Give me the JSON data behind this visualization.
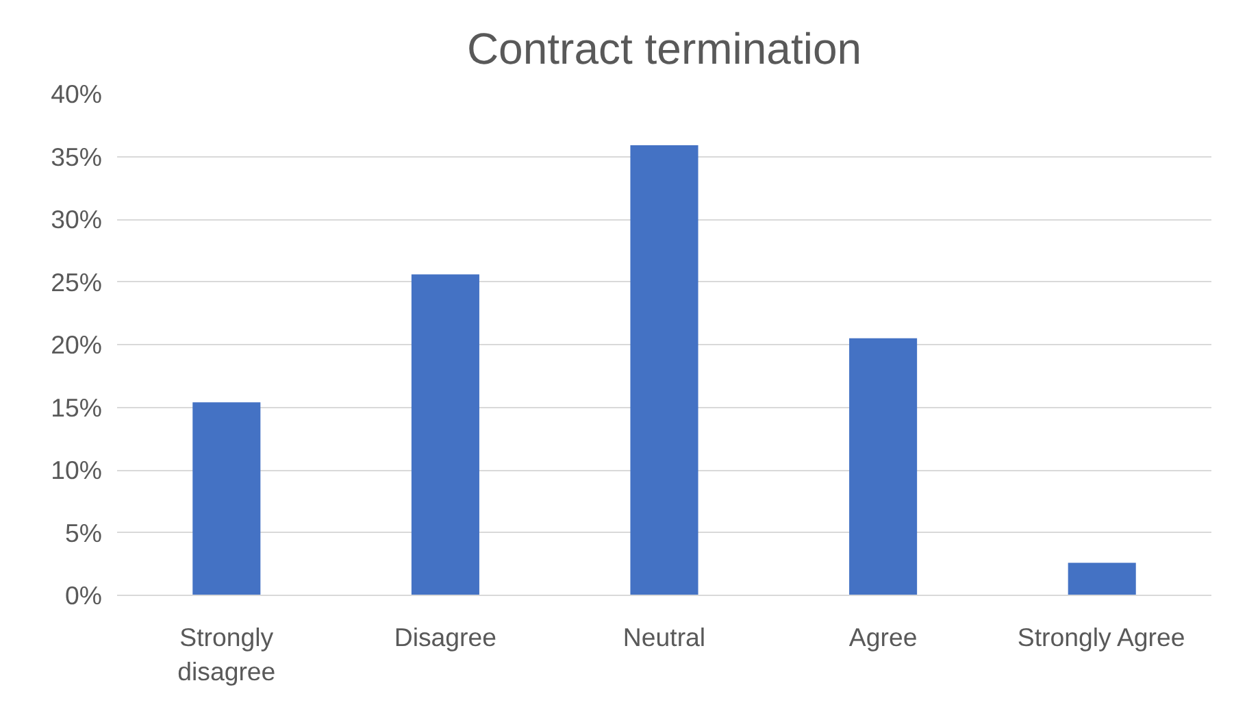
{
  "chart_data": {
    "type": "bar",
    "title": "Contract termination",
    "categories": [
      "Strongly disagree",
      "Disagree",
      "Neutral",
      "Agree",
      "Strongly Agree"
    ],
    "values": [
      15.4,
      25.6,
      35.9,
      20.5,
      2.6
    ],
    "color": "#4472c4",
    "ylim": [
      0,
      40
    ],
    "yticks": [
      {
        "value": 0,
        "label": "0%"
      },
      {
        "value": 5,
        "label": "5%"
      },
      {
        "value": 10,
        "label": "10%"
      },
      {
        "value": 15,
        "label": "15%"
      },
      {
        "value": 20,
        "label": "20%"
      },
      {
        "value": 25,
        "label": "25%"
      },
      {
        "value": 30,
        "label": "30%"
      },
      {
        "value": 35,
        "label": "35%"
      },
      {
        "value": 40,
        "label": "40%"
      }
    ],
    "grid": "y"
  }
}
